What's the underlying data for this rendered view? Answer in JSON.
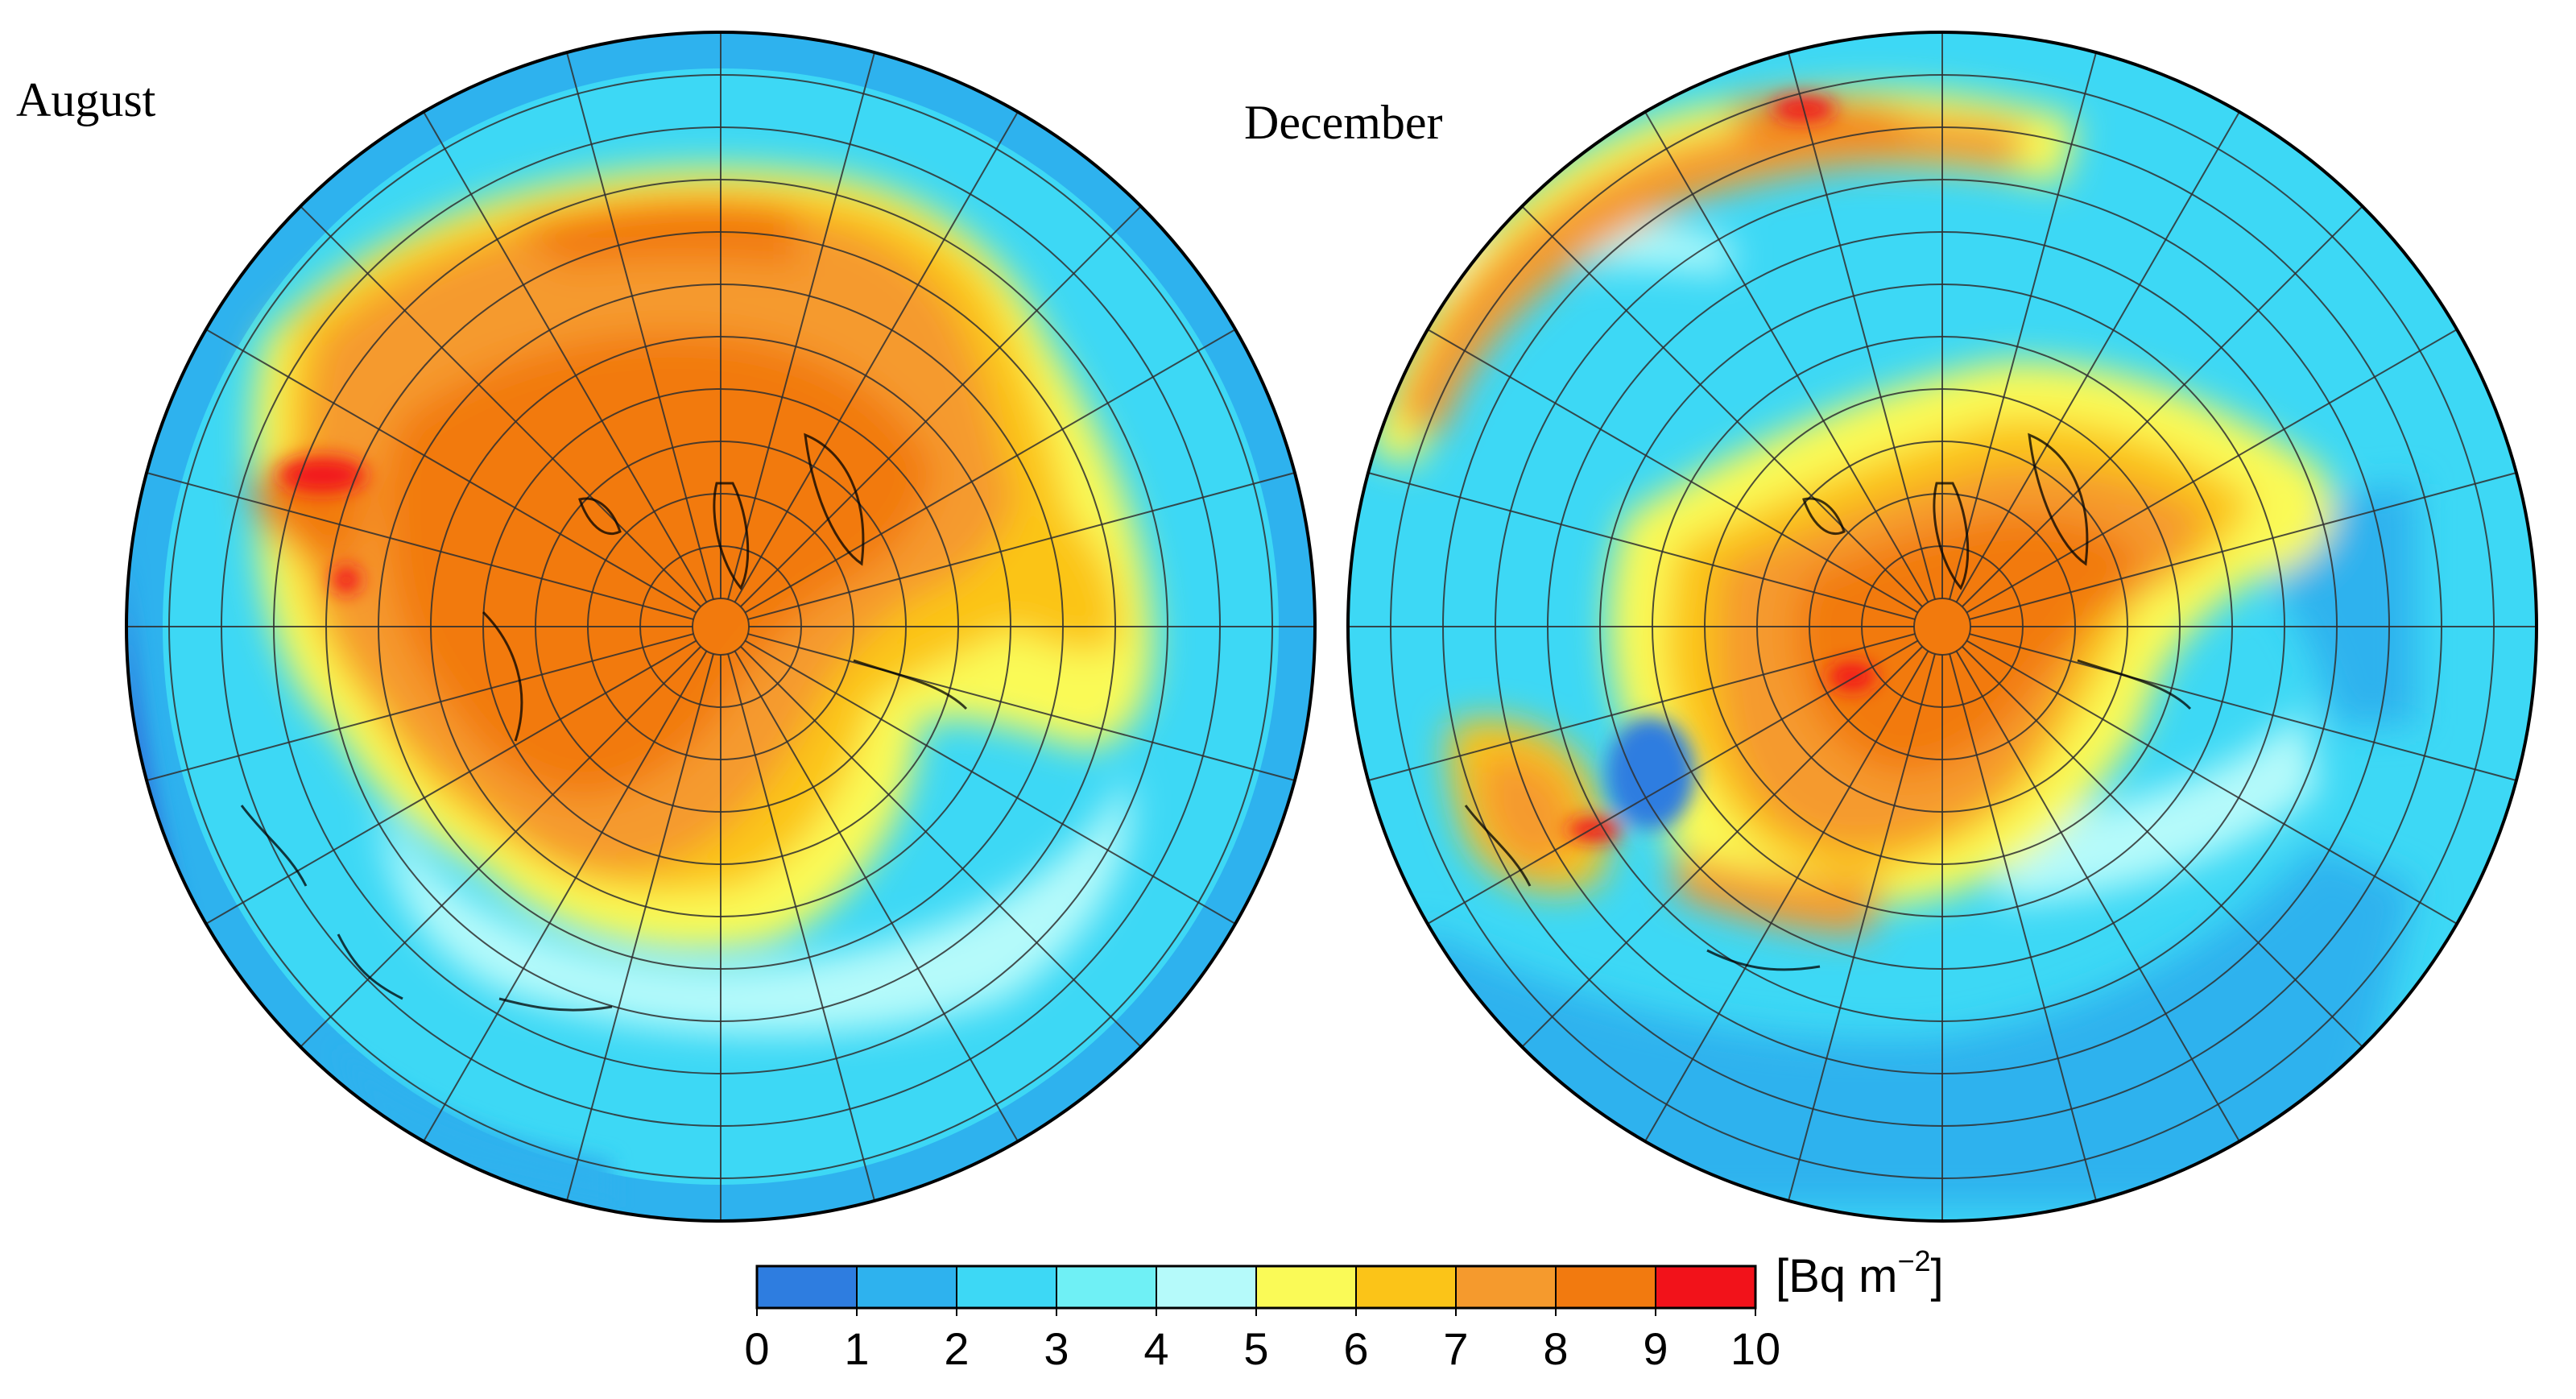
{
  "maps": [
    {
      "title": "August",
      "month": "August"
    },
    {
      "title": "December",
      "month": "December"
    }
  ],
  "colorbar": {
    "unit_prefix": "[Bq m",
    "unit_exponent": "−2",
    "unit_suffix": "]",
    "ticks": [
      "0",
      "1",
      "2",
      "3",
      "4",
      "5",
      "6",
      "7",
      "8",
      "9",
      "10"
    ],
    "bins": [
      {
        "range": [
          0,
          1
        ],
        "color": "#2e7de0"
      },
      {
        "range": [
          1,
          2
        ],
        "color": "#2eb2ee"
      },
      {
        "range": [
          2,
          3
        ],
        "color": "#3dd8f5"
      },
      {
        "range": [
          3,
          4
        ],
        "color": "#6ff0f5"
      },
      {
        "range": [
          4,
          5
        ],
        "color": "#b5fafa"
      },
      {
        "range": [
          5,
          6
        ],
        "color": "#fafa57"
      },
      {
        "range": [
          6,
          7
        ],
        "color": "#fbc418"
      },
      {
        "range": [
          7,
          8
        ],
        "color": "#f59a2d"
      },
      {
        "range": [
          8,
          9
        ],
        "color": "#f27a0f"
      },
      {
        "range": [
          9,
          10
        ],
        "color": "#f2121a"
      }
    ]
  },
  "projection": "north polar stereographic",
  "grid": true
}
